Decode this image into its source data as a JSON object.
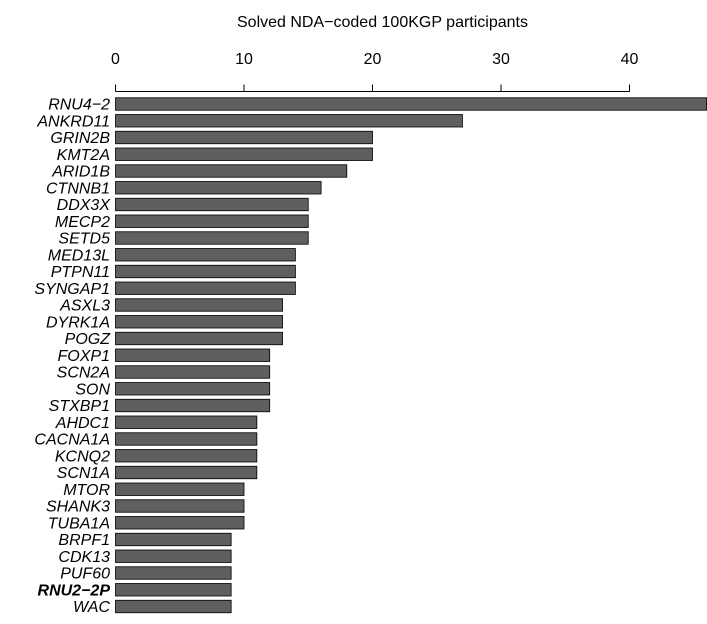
{
  "chart_data": {
    "type": "bar",
    "orientation": "horizontal",
    "title": "",
    "xlabel": "Solved NDA−coded 100KGP participants",
    "ylabel": "",
    "xlim": [
      0,
      46
    ],
    "x_ticks": [
      0,
      10,
      20,
      30,
      40
    ],
    "x_axis_position": "top",
    "grid": false,
    "legend": "none",
    "bar_fill": "#5f5f5f",
    "bar_stroke": "#000000",
    "highlight_label": "RNU2−2P",
    "categories": [
      "RNU4−2",
      "ANKRD11",
      "GRIN2B",
      "KMT2A",
      "ARID1B",
      "CTNNB1",
      "DDX3X",
      "MECP2",
      "SETD5",
      "MED13L",
      "PTPN11",
      "SYNGAP1",
      "ASXL3",
      "DYRK1A",
      "POGZ",
      "FOXP1",
      "SCN2A",
      "SON",
      "STXBP1",
      "AHDC1",
      "CACNA1A",
      "KCNQ2",
      "SCN1A",
      "MTOR",
      "SHANK3",
      "TUBA1A",
      "BRPF1",
      "CDK13",
      "PUF60",
      "RNU2−2P",
      "WAC"
    ],
    "values": [
      46,
      27,
      20,
      20,
      18,
      16,
      15,
      15,
      15,
      14,
      14,
      14,
      13,
      13,
      13,
      12,
      12,
      12,
      12,
      11,
      11,
      11,
      11,
      10,
      10,
      10,
      9,
      9,
      9,
      9,
      9
    ]
  }
}
